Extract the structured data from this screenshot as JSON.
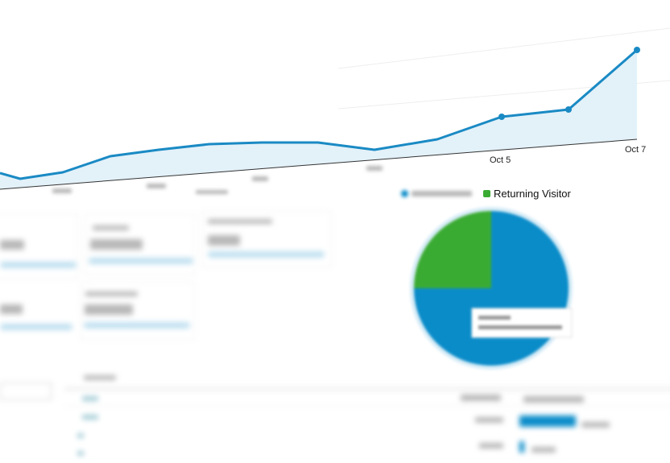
{
  "chart": {
    "x_labels_visible": [
      "Oct 5",
      "Oct 7"
    ],
    "line_color": "#1a8ac4",
    "fill_color": "#e3f1f9"
  },
  "pie": {
    "legend": {
      "returning_label": "Returning Visitor"
    },
    "colors": {
      "new": "#0a8cc9",
      "returning": "#3aab32"
    },
    "returning_share_percent": 25
  }
}
